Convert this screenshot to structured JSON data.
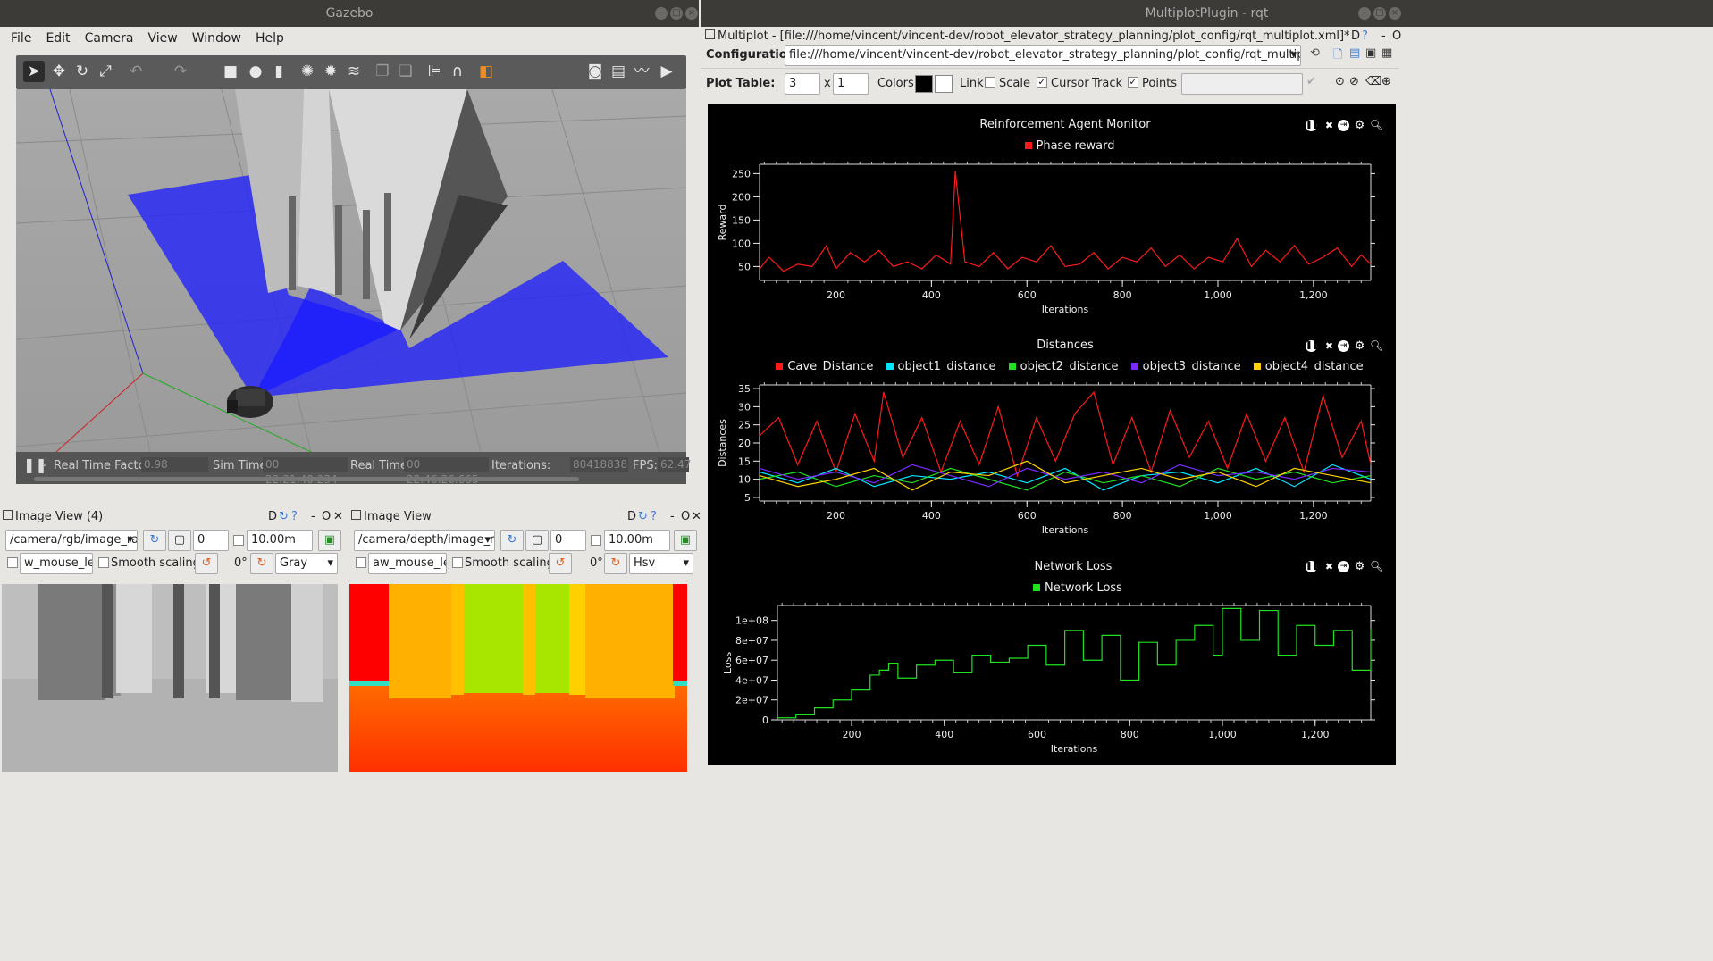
{
  "gazebo": {
    "title": "Gazebo",
    "menu": [
      "File",
      "Edit",
      "Camera",
      "View",
      "Window",
      "Help"
    ],
    "status": {
      "pause_icon": "pause-icon",
      "rtf_label": "Real Time Factor:",
      "rtf_value": "0.98",
      "sim_label": "Sim Time:",
      "sim_value": "00 22:21:40.234",
      "real_label": "Real Time:",
      "real_value": "00 22:46:26.665",
      "iter_label": "Iterations:",
      "iter_value": "80418838",
      "fps_label": "FPS:",
      "fps_value": "62.47"
    }
  },
  "imageview1": {
    "title": "Image View (4)",
    "topic": "/camera/rgb/image_ra…",
    "spin_value": "0",
    "range_value": "10.00m",
    "mouse_topic": "w_mouse_left",
    "smooth_label": "Smooth scaling",
    "rotation": "0°",
    "colormap": "Gray",
    "hdr_suffix": "D"
  },
  "imageview2": {
    "title": "Image View",
    "topic": "/camera/depth/image_ra…",
    "spin_value": "0",
    "range_value": "10.00m",
    "mouse_topic": "aw_mouse_left",
    "smooth_label": "Smooth scaling",
    "rotation": "0°",
    "colormap": "Hsv",
    "hdr_suffix": "D"
  },
  "rqt": {
    "title": "MultiplotPlugin - rqt",
    "plugin_title": "Multiplot - [file:///home/vincent/vincent-dev/robot_elevator_strategy_planning/plot_config/rqt_multiplot.xml]*",
    "config_label": "Configuration:",
    "config_value": "file:///home/vincent/vincent-dev/robot_elevator_strategy_planning/plot_config/rqt_multiplot.xml",
    "plot_table_label": "Plot Table:",
    "rows": "3",
    "x_sep": "x",
    "cols": "1",
    "colors_label": "Colors",
    "link_label": "Link",
    "scale_label": "Scale",
    "cursor_label": "Cursor",
    "track_label": "Track",
    "points_label": "Points",
    "hdr_suffix": "D"
  },
  "colors": {
    "red": "#ff1a1a",
    "cyan": "#00e5ff",
    "green": "#22e022",
    "purple": "#7a2bff",
    "yellow": "#ffd200"
  },
  "chart_data": [
    {
      "type": "line",
      "title": "Reinforcement Agent Monitor",
      "xlabel": "Iterations",
      "ylabel": "Reward",
      "xlim": [
        40,
        1320
      ],
      "ylim": [
        20,
        270
      ],
      "xticks": [
        "200",
        "400",
        "600",
        "800",
        "1,000",
        "1,200"
      ],
      "xtick_values": [
        200,
        400,
        600,
        800,
        1000,
        1200
      ],
      "yticks": [
        "50",
        "100",
        "150",
        "200",
        "250"
      ],
      "ytick_values": [
        50,
        100,
        150,
        200,
        250
      ],
      "series": [
        {
          "name": "Phase reward",
          "color": "#ff1a1a",
          "x": [
            40,
            60,
            90,
            120,
            150,
            180,
            200,
            230,
            260,
            290,
            320,
            350,
            380,
            410,
            440,
            450,
            470,
            500,
            530,
            560,
            590,
            620,
            650,
            680,
            710,
            740,
            770,
            800,
            830,
            860,
            890,
            920,
            950,
            980,
            1010,
            1040,
            1070,
            1100,
            1130,
            1160,
            1190,
            1220,
            1250,
            1280,
            1300,
            1320
          ],
          "y": [
            45,
            70,
            40,
            55,
            50,
            95,
            45,
            80,
            60,
            85,
            50,
            60,
            45,
            75,
            55,
            255,
            60,
            50,
            80,
            45,
            70,
            60,
            95,
            50,
            55,
            80,
            45,
            70,
            60,
            90,
            50,
            75,
            45,
            70,
            60,
            110,
            50,
            85,
            60,
            95,
            55,
            70,
            90,
            50,
            75,
            55
          ]
        }
      ]
    },
    {
      "type": "line",
      "title": "Distances",
      "xlabel": "Iterations",
      "ylabel": "Distances",
      "xlim": [
        40,
        1320
      ],
      "ylim": [
        4,
        36
      ],
      "xticks": [
        "200",
        "400",
        "600",
        "800",
        "1,000",
        "1,200"
      ],
      "xtick_values": [
        200,
        400,
        600,
        800,
        1000,
        1200
      ],
      "yticks": [
        "5",
        "10",
        "15",
        "20",
        "25",
        "30",
        "35"
      ],
      "ytick_values": [
        5,
        10,
        15,
        20,
        25,
        30,
        35
      ],
      "series": [
        {
          "name": "Cave_Distance",
          "color": "#ff1a1a",
          "x": [
            40,
            80,
            120,
            160,
            200,
            240,
            280,
            300,
            340,
            380,
            420,
            460,
            500,
            540,
            580,
            620,
            660,
            700,
            740,
            780,
            820,
            860,
            900,
            940,
            980,
            1020,
            1060,
            1100,
            1140,
            1180,
            1220,
            1260,
            1300,
            1320
          ],
          "y": [
            22,
            27,
            14,
            26,
            12,
            28,
            15,
            34,
            16,
            27,
            12,
            26,
            14,
            30,
            11,
            27,
            15,
            28,
            34,
            14,
            27,
            12,
            29,
            16,
            26,
            13,
            28,
            15,
            27,
            12,
            33,
            16,
            26,
            14
          ]
        },
        {
          "name": "object1_distance",
          "color": "#00e5ff",
          "x": [
            40,
            120,
            200,
            280,
            360,
            440,
            520,
            600,
            680,
            760,
            840,
            920,
            1000,
            1080,
            1160,
            1240,
            1320
          ],
          "y": [
            12,
            9,
            13,
            8,
            11,
            10,
            12,
            9,
            13,
            7,
            11,
            12,
            9,
            13,
            8,
            14,
            10
          ]
        },
        {
          "name": "object2_distance",
          "color": "#22e022",
          "x": [
            40,
            120,
            200,
            280,
            360,
            440,
            520,
            600,
            680,
            760,
            840,
            920,
            1000,
            1080,
            1160,
            1240,
            1320
          ],
          "y": [
            10,
            12,
            8,
            11,
            9,
            13,
            10,
            7,
            12,
            9,
            11,
            8,
            13,
            10,
            12,
            9,
            11
          ]
        },
        {
          "name": "object3_distance",
          "color": "#7a2bff",
          "x": [
            40,
            120,
            200,
            280,
            360,
            440,
            520,
            600,
            680,
            760,
            840,
            920,
            1000,
            1080,
            1160,
            1240,
            1320
          ],
          "y": [
            13,
            10,
            12,
            9,
            14,
            11,
            8,
            13,
            10,
            12,
            9,
            14,
            11,
            12,
            10,
            13,
            12
          ]
        },
        {
          "name": "object4_distance",
          "color": "#ffd200",
          "x": [
            40,
            120,
            200,
            280,
            360,
            440,
            520,
            600,
            680,
            760,
            840,
            920,
            1000,
            1080,
            1160,
            1240,
            1320
          ],
          "y": [
            11,
            8,
            10,
            13,
            7,
            12,
            11,
            15,
            9,
            11,
            13,
            10,
            12,
            8,
            13,
            11,
            9
          ]
        }
      ]
    },
    {
      "type": "line",
      "title": "Network Loss",
      "xlabel": "Iterations",
      "ylabel": "Loss",
      "xlim": [
        40,
        1320
      ],
      "ylim": [
        0,
        115000000
      ],
      "xticks": [
        "200",
        "400",
        "600",
        "800",
        "1,000",
        "1,200"
      ],
      "xtick_values": [
        200,
        400,
        600,
        800,
        1000,
        1200
      ],
      "yticks": [
        "0",
        "2e+07",
        "4e+07",
        "6e+07",
        "8e+07",
        "1e+08"
      ],
      "ytick_values": [
        0,
        20000000,
        40000000,
        60000000,
        80000000,
        100000000
      ],
      "series": [
        {
          "name": "Network Loss",
          "color": "#22e022",
          "x": [
            40,
            80,
            120,
            160,
            200,
            240,
            260,
            280,
            300,
            340,
            380,
            420,
            460,
            500,
            540,
            580,
            620,
            660,
            700,
            740,
            780,
            820,
            860,
            900,
            940,
            980,
            1000,
            1040,
            1080,
            1120,
            1160,
            1200,
            1240,
            1280,
            1320
          ],
          "y": [
            2000000,
            5000000,
            12000000,
            20000000,
            30000000,
            45000000,
            50000000,
            57000000,
            42000000,
            55000000,
            60000000,
            48000000,
            65000000,
            58000000,
            62000000,
            75000000,
            55000000,
            90000000,
            60000000,
            85000000,
            40000000,
            78000000,
            55000000,
            80000000,
            95000000,
            65000000,
            112000000,
            80000000,
            110000000,
            65000000,
            95000000,
            75000000,
            90000000,
            50000000,
            92000000
          ]
        }
      ]
    }
  ]
}
